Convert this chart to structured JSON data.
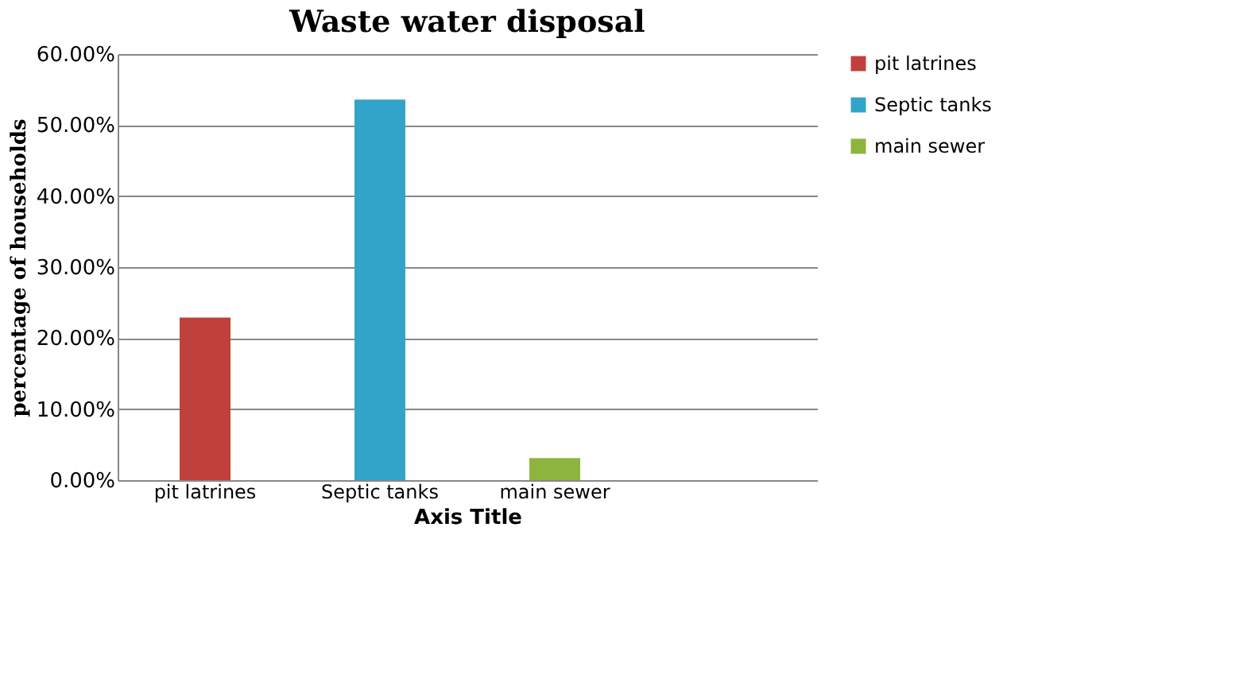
{
  "chart_data": {
    "type": "bar",
    "title": "Waste water disposal",
    "xlabel": "Axis Title",
    "ylabel": "percentage of households",
    "categories": [
      "pit latrines",
      "Septic tanks",
      "main sewer",
      null
    ],
    "series": [
      {
        "name": "pit latrines",
        "color": "#c0403c",
        "values": [
          22.9,
          null,
          null,
          null
        ]
      },
      {
        "name": "Septic tanks",
        "color": "#33a4c9",
        "values": [
          null,
          53.6,
          null,
          null
        ]
      },
      {
        "name": "main sewer",
        "color": "#8db43e",
        "values": [
          null,
          null,
          3.1,
          null
        ]
      }
    ],
    "ylim": [
      0,
      60
    ],
    "yticks": [
      {
        "value": 0,
        "label": "0.00%"
      },
      {
        "value": 10,
        "label": "10.00%"
      },
      {
        "value": 20,
        "label": "20.00%"
      },
      {
        "value": 30,
        "label": "30.00%"
      },
      {
        "value": 40,
        "label": "40.00%"
      },
      {
        "value": 50,
        "label": "50.00%"
      },
      {
        "value": 60,
        "label": "60.00%"
      }
    ],
    "grid": "y",
    "legend": "right"
  }
}
